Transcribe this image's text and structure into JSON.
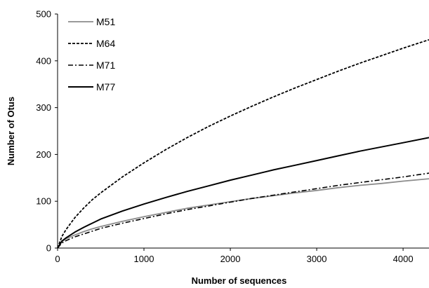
{
  "chart_data": {
    "type": "line",
    "title": "",
    "xlabel": "Number of sequences",
    "ylabel": "Number of Otus",
    "xlim": [
      0,
      4300
    ],
    "ylim": [
      0,
      500
    ],
    "xticks": [
      0,
      1000,
      2000,
      3000,
      4000
    ],
    "yticks": [
      0,
      100,
      200,
      300,
      400,
      500
    ],
    "grid": false,
    "legend_position": "top-left",
    "x": [
      0,
      50,
      100,
      200,
      300,
      400,
      500,
      750,
      1000,
      1250,
      1500,
      1750,
      2000,
      2250,
      2500,
      2750,
      3000,
      3250,
      3500,
      3750,
      4000,
      4300
    ],
    "series": [
      {
        "name": "M51",
        "style": "solid-gray",
        "color": "#8c8c8c",
        "values": [
          0,
          14,
          20,
          28,
          35,
          41,
          46,
          57,
          67,
          76,
          85,
          92,
          99,
          106,
          112,
          118,
          123,
          129,
          134,
          138,
          143,
          148
        ]
      },
      {
        "name": "M64",
        "style": "dashed",
        "color": "#000000",
        "values": [
          0,
          25,
          40,
          65,
          85,
          103,
          118,
          152,
          182,
          210,
          236,
          260,
          282,
          303,
          323,
          342,
          360,
          378,
          395,
          411,
          427,
          445
        ]
      },
      {
        "name": "M71",
        "style": "dash-dot",
        "color": "#000000",
        "values": [
          0,
          11,
          16,
          24,
          30,
          36,
          42,
          53,
          63,
          73,
          82,
          90,
          98,
          106,
          113,
          120,
          127,
          134,
          140,
          146,
          152,
          160
        ]
      },
      {
        "name": "M77",
        "style": "solid-black",
        "color": "#000000",
        "values": [
          0,
          15,
          22,
          34,
          44,
          53,
          62,
          79,
          94,
          108,
          121,
          133,
          145,
          156,
          167,
          177,
          187,
          197,
          207,
          216,
          225,
          236
        ]
      }
    ]
  }
}
